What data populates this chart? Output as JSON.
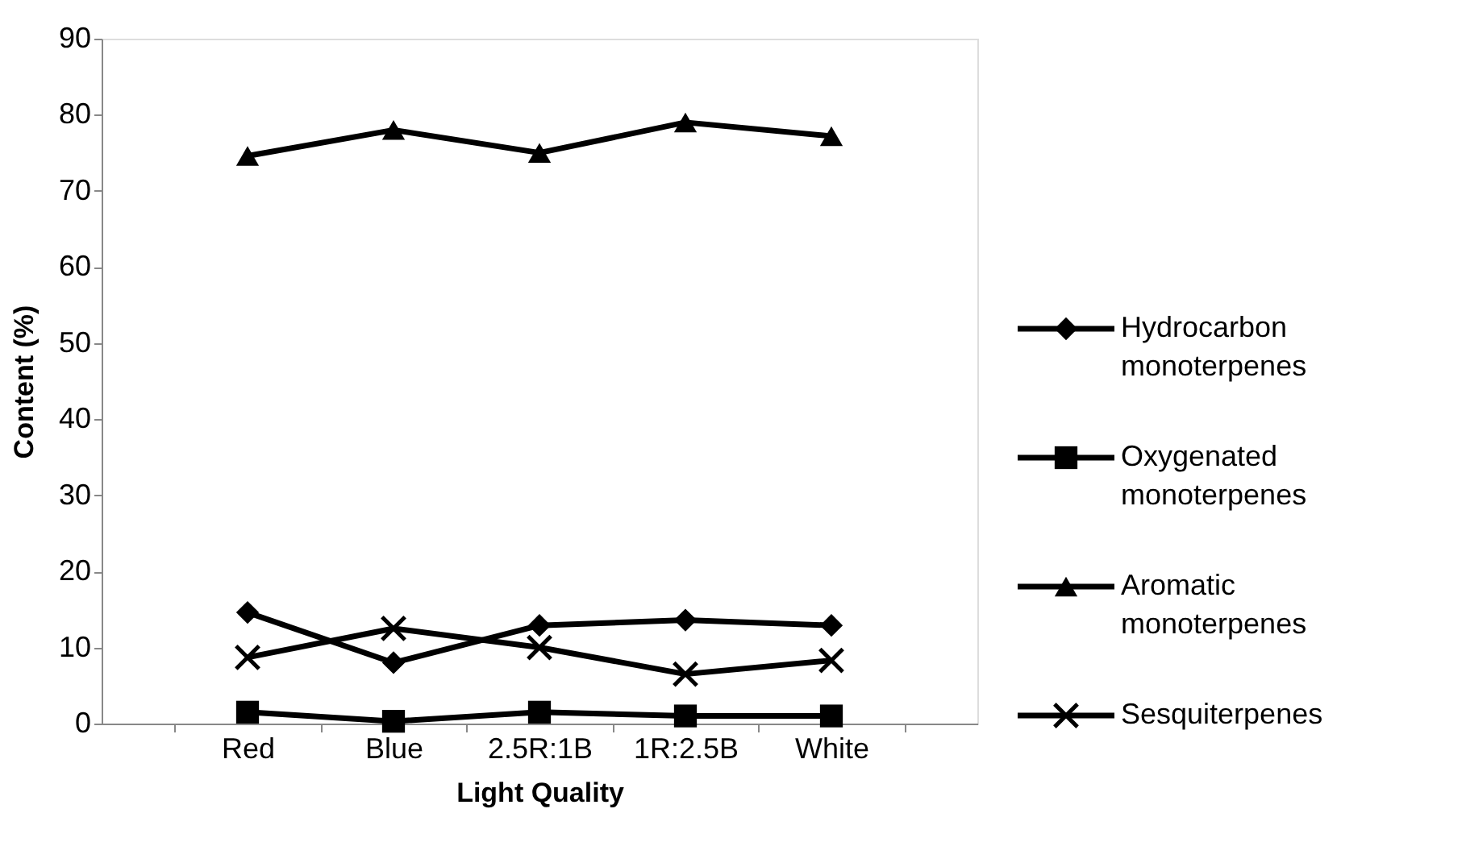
{
  "chart_data": {
    "type": "line",
    "xlabel": "Light Quality",
    "ylabel": "Content (%)",
    "categories": [
      "Red",
      "Blue",
      "2.5R:1B",
      "1R:2.5B",
      "White"
    ],
    "ylim": [
      0,
      90
    ],
    "yticks": [
      0,
      10,
      20,
      30,
      40,
      50,
      60,
      70,
      80,
      90
    ],
    "grid": false,
    "legend": "right",
    "line_style": "solid",
    "series": [
      {
        "name": "Hydrocarbon monoterpenes",
        "color": "#000000",
        "marker": "diamond",
        "values": [
          14.6,
          8,
          12.9,
          13.6,
          12.9
        ]
      },
      {
        "name": "Oxygenated monoterpenes",
        "color": "#000000",
        "marker": "square",
        "values": [
          1.5,
          0.3,
          1.5,
          1,
          1
        ]
      },
      {
        "name": "Aromatic monoterpenes",
        "color": "#000000",
        "marker": "triangle",
        "values": [
          74.6,
          78,
          75,
          79,
          77.2
        ]
      },
      {
        "name": "Sesquiterpenes",
        "color": "#000000",
        "marker": "cross",
        "values": [
          8.7,
          12.5,
          10,
          6.5,
          8.3
        ]
      }
    ]
  }
}
